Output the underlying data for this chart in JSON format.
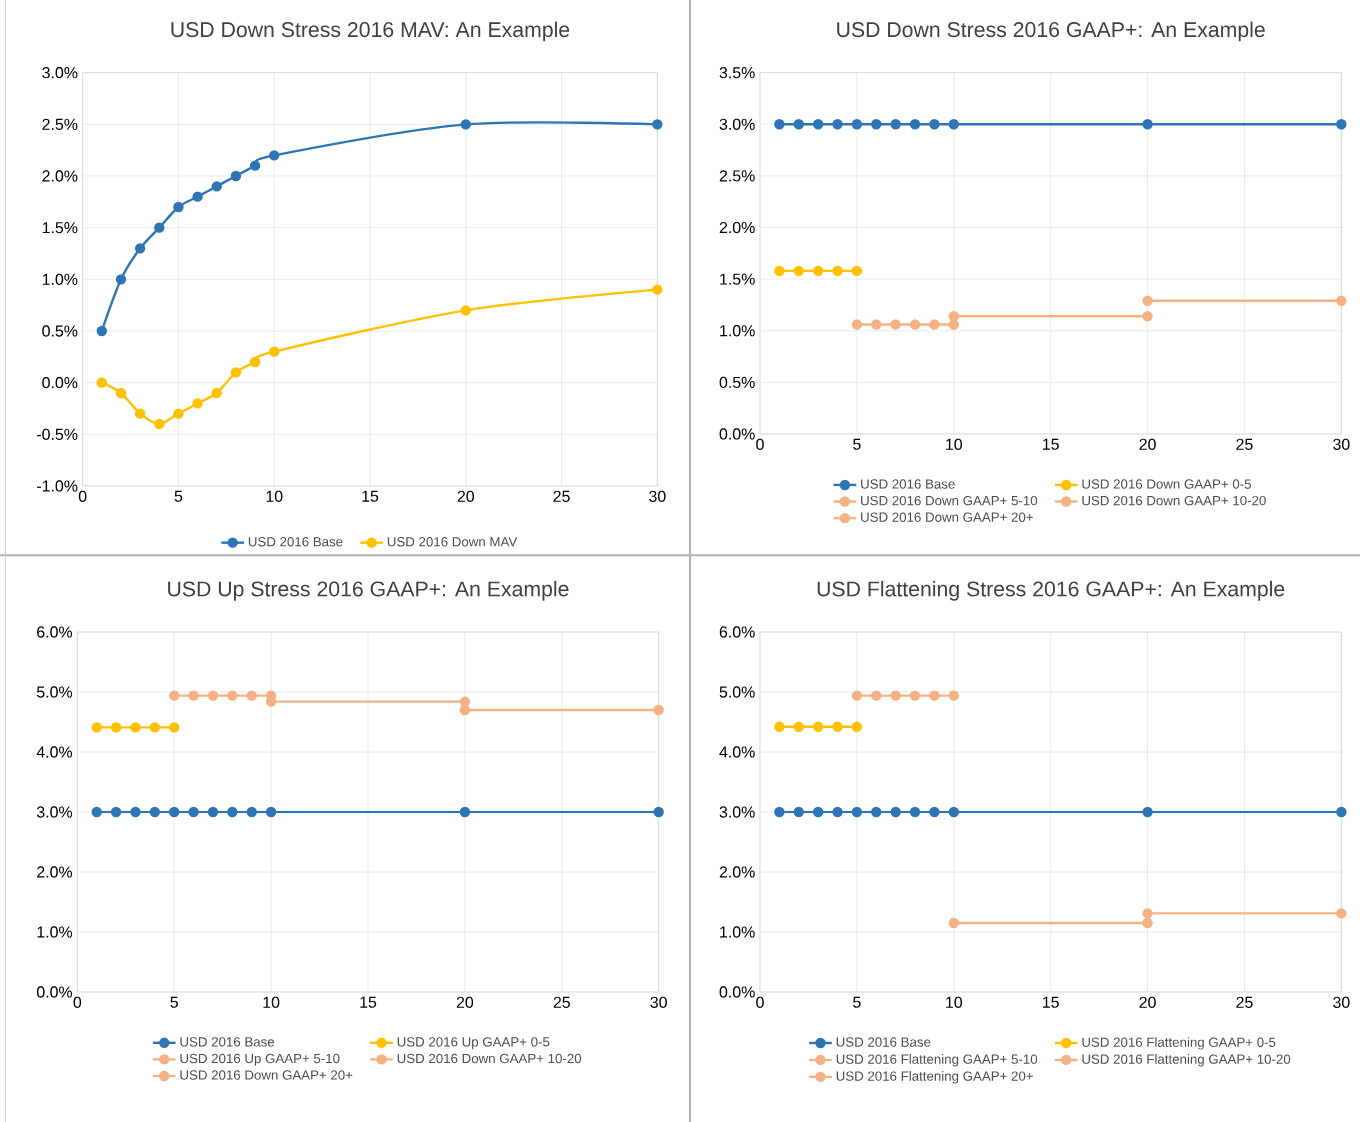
{
  "chart_data": [
    {
      "type": "line",
      "title": "USD Down Stress 2016 MAV: An Example",
      "xlim": [
        0,
        30
      ],
      "xticks": [
        0,
        5,
        10,
        15,
        20,
        25,
        30
      ],
      "ylim": [
        -1.0,
        3.0
      ],
      "yticks": [
        {
          "value": -1.0,
          "label": "-1.0%"
        },
        {
          "value": -0.5,
          "label": "-0.5%"
        },
        {
          "value": 0.0,
          "label": "0.0%"
        },
        {
          "value": 0.5,
          "label": "0.5%"
        },
        {
          "value": 1.0,
          "label": "1.0%"
        },
        {
          "value": 1.5,
          "label": "1.5%"
        },
        {
          "value": 2.0,
          "label": "2.0%"
        },
        {
          "value": 2.5,
          "label": "2.5%"
        },
        {
          "value": 3.0,
          "label": "3.0%"
        }
      ],
      "grid": true,
      "legend": "bottom",
      "marker": "circle",
      "series": [
        {
          "name": "USD 2016 Base",
          "color": "#2e75b6",
          "x": [
            1,
            2,
            3,
            4,
            5,
            6,
            7,
            8,
            9,
            10,
            20,
            30
          ],
          "values": [
            0.5,
            1.0,
            1.3,
            1.5,
            1.7,
            1.8,
            1.9,
            2.0,
            2.1,
            2.2,
            2.5,
            2.5
          ]
        },
        {
          "name": "USD 2016 Down MAV",
          "color": "#ffc000",
          "x": [
            1,
            2,
            3,
            4,
            5,
            6,
            7,
            8,
            9,
            10,
            20,
            30
          ],
          "values": [
            0.0,
            -0.1,
            -0.3,
            -0.4,
            -0.3,
            -0.2,
            -0.1,
            0.1,
            0.2,
            0.3,
            0.7,
            0.9
          ]
        }
      ]
    },
    {
      "type": "line",
      "title": "USD Down Stress 2016 GAAP+: An Example",
      "xlim": [
        0,
        30
      ],
      "xticks": [
        0,
        5,
        10,
        15,
        20,
        25,
        30
      ],
      "ylim": [
        0.0,
        3.5
      ],
      "yticks": [
        {
          "value": 0.0,
          "label": "0.0%"
        },
        {
          "value": 0.5,
          "label": "0.5%"
        },
        {
          "value": 1.0,
          "label": "1.0%"
        },
        {
          "value": 1.5,
          "label": "1.5%"
        },
        {
          "value": 2.0,
          "label": "2.0%"
        },
        {
          "value": 2.5,
          "label": "2.5%"
        },
        {
          "value": 3.0,
          "label": "3.0%"
        },
        {
          "value": 3.5,
          "label": "3.5%"
        }
      ],
      "grid": true,
      "legend": "bottom",
      "marker": "circle",
      "series": [
        {
          "name": "USD 2016 Base",
          "color": "#2e75b6",
          "x": [
            1,
            2,
            3,
            4,
            5,
            6,
            7,
            8,
            9,
            10,
            20,
            30
          ],
          "values": [
            3.0,
            3.0,
            3.0,
            3.0,
            3.0,
            3.0,
            3.0,
            3.0,
            3.0,
            3.0,
            3.0,
            3.0
          ]
        },
        {
          "name": "USD 2016 Down GAAP+ 0-5",
          "color": "#ffc000",
          "x": [
            1,
            2,
            3,
            4,
            5
          ],
          "values": [
            1.58,
            1.58,
            1.58,
            1.58,
            1.58
          ]
        },
        {
          "name": "USD 2016 Down GAAP+ 5-10",
          "color": "#f4b183",
          "x": [
            5,
            6,
            7,
            8,
            9,
            10
          ],
          "values": [
            1.06,
            1.06,
            1.06,
            1.06,
            1.06,
            1.06
          ]
        },
        {
          "name": "USD 2016 Down GAAP+ 10-20",
          "color": "#f4b183",
          "x": [
            10,
            20
          ],
          "values": [
            1.14,
            1.14
          ]
        },
        {
          "name": "USD 2016 Down GAAP+ 20+",
          "color": "#f4b183",
          "x": [
            20,
            30
          ],
          "values": [
            1.29,
            1.29
          ]
        }
      ]
    },
    {
      "type": "line",
      "title": "USD Up Stress 2016 GAAP+: An Example",
      "xlim": [
        0,
        30
      ],
      "xticks": [
        0,
        5,
        10,
        15,
        20,
        25,
        30
      ],
      "ylim": [
        0.0,
        6.0
      ],
      "yticks": [
        {
          "value": 0.0,
          "label": "0.0%"
        },
        {
          "value": 1.0,
          "label": "1.0%"
        },
        {
          "value": 2.0,
          "label": "2.0%"
        },
        {
          "value": 3.0,
          "label": "3.0%"
        },
        {
          "value": 4.0,
          "label": "4.0%"
        },
        {
          "value": 5.0,
          "label": "5.0%"
        },
        {
          "value": 6.0,
          "label": "6.0%"
        }
      ],
      "grid": true,
      "legend": "bottom",
      "marker": "circle",
      "series": [
        {
          "name": "USD 2016 Base",
          "color": "#2e75b6",
          "x": [
            1,
            2,
            3,
            4,
            5,
            6,
            7,
            8,
            9,
            10,
            20,
            30
          ],
          "values": [
            3.0,
            3.0,
            3.0,
            3.0,
            3.0,
            3.0,
            3.0,
            3.0,
            3.0,
            3.0,
            3.0,
            3.0
          ]
        },
        {
          "name": "USD 2016 Up GAAP+ 0-5",
          "color": "#ffc000",
          "x": [
            1,
            2,
            3,
            4,
            5
          ],
          "values": [
            4.41,
            4.41,
            4.41,
            4.41,
            4.41
          ]
        },
        {
          "name": "USD 2016 Up GAAP+ 5-10",
          "color": "#f4b183",
          "x": [
            5,
            6,
            7,
            8,
            9,
            10
          ],
          "values": [
            4.94,
            4.94,
            4.94,
            4.94,
            4.94,
            4.94
          ]
        },
        {
          "name": "USD 2016 Down GAAP+ 10-20",
          "color": "#f4b183",
          "x": [
            10,
            20
          ],
          "values": [
            4.84,
            4.84
          ]
        },
        {
          "name": "USD 2016 Down GAAP+ 20+",
          "color": "#f4b183",
          "x": [
            20,
            30
          ],
          "values": [
            4.7,
            4.7
          ]
        }
      ]
    },
    {
      "type": "line",
      "title": "USD Flattening Stress 2016 GAAP+: An Example",
      "xlim": [
        0,
        30
      ],
      "xticks": [
        0,
        5,
        10,
        15,
        20,
        25,
        30
      ],
      "ylim": [
        0.0,
        6.0
      ],
      "yticks": [
        {
          "value": 0.0,
          "label": "0.0%"
        },
        {
          "value": 1.0,
          "label": "1.0%"
        },
        {
          "value": 2.0,
          "label": "2.0%"
        },
        {
          "value": 3.0,
          "label": "3.0%"
        },
        {
          "value": 4.0,
          "label": "4.0%"
        },
        {
          "value": 5.0,
          "label": "5.0%"
        },
        {
          "value": 6.0,
          "label": "6.0%"
        }
      ],
      "grid": true,
      "legend": "bottom",
      "marker": "circle",
      "series": [
        {
          "name": "USD 2016 Base",
          "color": "#2e75b6",
          "x": [
            1,
            2,
            3,
            4,
            5,
            6,
            7,
            8,
            9,
            10,
            20,
            30
          ],
          "values": [
            3.0,
            3.0,
            3.0,
            3.0,
            3.0,
            3.0,
            3.0,
            3.0,
            3.0,
            3.0,
            3.0,
            3.0
          ]
        },
        {
          "name": "USD 2016 Flattening GAAP+ 0-5",
          "color": "#ffc000",
          "x": [
            1,
            2,
            3,
            4,
            5
          ],
          "values": [
            4.42,
            4.42,
            4.42,
            4.42,
            4.42
          ]
        },
        {
          "name": "USD 2016 Flattening GAAP+ 5-10",
          "color": "#f4b183",
          "x": [
            5,
            6,
            7,
            8,
            9,
            10
          ],
          "values": [
            4.94,
            4.94,
            4.94,
            4.94,
            4.94,
            4.94
          ]
        },
        {
          "name": "USD 2016 Flattening GAAP+ 10-20",
          "color": "#f4b183",
          "x": [
            10,
            20
          ],
          "values": [
            1.15,
            1.15
          ]
        },
        {
          "name": "USD 2016 Flattening GAAP+ 20+",
          "color": "#f4b183",
          "x": [
            20,
            30
          ],
          "values": [
            1.31,
            1.31
          ]
        }
      ]
    }
  ]
}
